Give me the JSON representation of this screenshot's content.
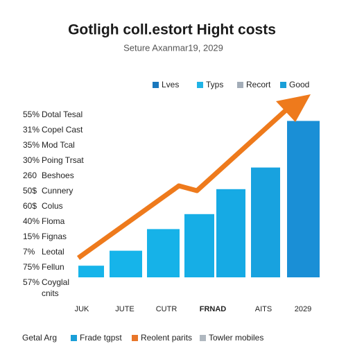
{
  "chart_data": {
    "type": "bar",
    "title": "Gotligh coll.estort Hight costs",
    "subtitle": "Seture Axanmar19, 2029",
    "legend": [
      {
        "name": "Lves",
        "color": "#1a78bd"
      },
      {
        "name": "Typs",
        "color": "#1fb3e6"
      },
      {
        "name": "Recort",
        "color": "#a3adb8"
      },
      {
        "name": "Good",
        "color": "#1a9fd8"
      }
    ],
    "side_labels": [
      {
        "pct": "55%",
        "text": "Dotal Tesal"
      },
      {
        "pct": "31%",
        "text": "Copel Cast"
      },
      {
        "pct": "35%",
        "text": "Mod Tcal"
      },
      {
        "pct": "30%",
        "text": "Poing Trsat"
      },
      {
        "pct": "260",
        "text": "Beshoes"
      },
      {
        "pct": "50$",
        "text": "Cunnery"
      },
      {
        "pct": "60$",
        "text": "Colus"
      },
      {
        "pct": "40%",
        "text": "Floma"
      },
      {
        "pct": "15%",
        "text": "Fignas"
      },
      {
        "pct": "7%",
        "text": "Leotal"
      },
      {
        "pct": "75%",
        "text": "Fellun"
      },
      {
        "pct": "57%",
        "text": "Coyglal"
      },
      {
        "text": "cnits"
      }
    ],
    "categories": [
      "JUK",
      "JUTE",
      "CUTR",
      "FRNAD",
      null,
      "AITS",
      "2029"
    ],
    "values": [
      7,
      16,
      29,
      38,
      53,
      66,
      94
    ],
    "colors": [
      "#16b4ea",
      "#16b4ea",
      "#16b2e8",
      "#16aee6",
      "#16aae4",
      "#18a2df",
      "#1a8fd6"
    ],
    "ylim": [
      0,
      100
    ],
    "footer_label": "Getal Arg",
    "footer_legend": [
      {
        "name": "Frade tgpst",
        "color": "#1a9fd8"
      },
      {
        "name": "Reolent parits",
        "color": "#e8762a"
      },
      {
        "name": "Towler mobiles",
        "color": "#b0b8c0"
      }
    ]
  }
}
